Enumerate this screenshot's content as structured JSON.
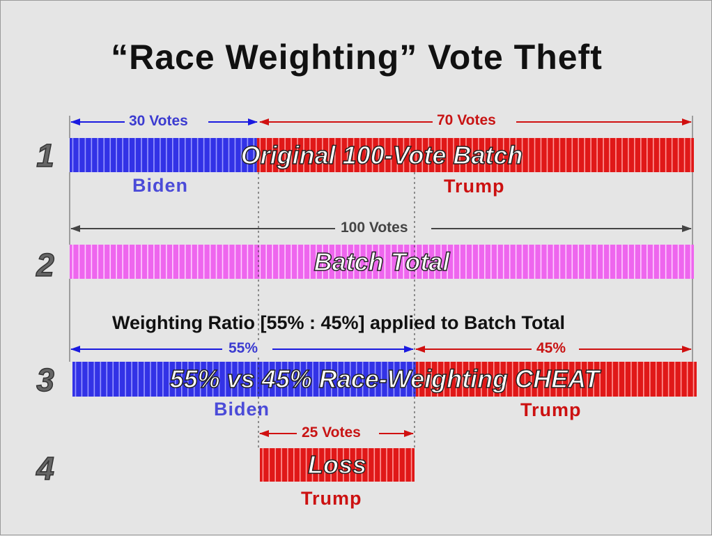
{
  "title": "“Race Weighting” Vote Theft",
  "colors": {
    "biden": "#3232e6",
    "biden_text": "#4b4bd8",
    "trump": "#e01818",
    "trump_text": "#cc1111",
    "total": "#ee66ee",
    "gray": "#444444"
  },
  "rows": [
    {
      "number": "1",
      "bar_label": "Original 100-Vote Batch",
      "dim_biden": "30 Votes",
      "dim_trump": "70 Votes",
      "biden_label": "Biden",
      "trump_label": "Trump"
    },
    {
      "number": "2",
      "bar_label": "Batch Total",
      "dim_total": "100 Votes"
    },
    {
      "number": "3",
      "bar_label": "55% vs 45% Race-Weighting CHEAT",
      "dim_biden": "55%",
      "dim_trump": "45%",
      "biden_label": "Biden",
      "trump_label": "Trump"
    },
    {
      "number": "4",
      "bar_label": "Loss",
      "dim_loss": "25 Votes",
      "trump_label": "Trump"
    }
  ],
  "ratio_text": "Weighting Ratio [55% : 45%]  applied to Batch Total",
  "values": {
    "batch_total": 100,
    "original_biden": 30,
    "original_trump": 70,
    "weighted_biden_pct": 55,
    "weighted_trump_pct": 45,
    "loss": 25
  }
}
